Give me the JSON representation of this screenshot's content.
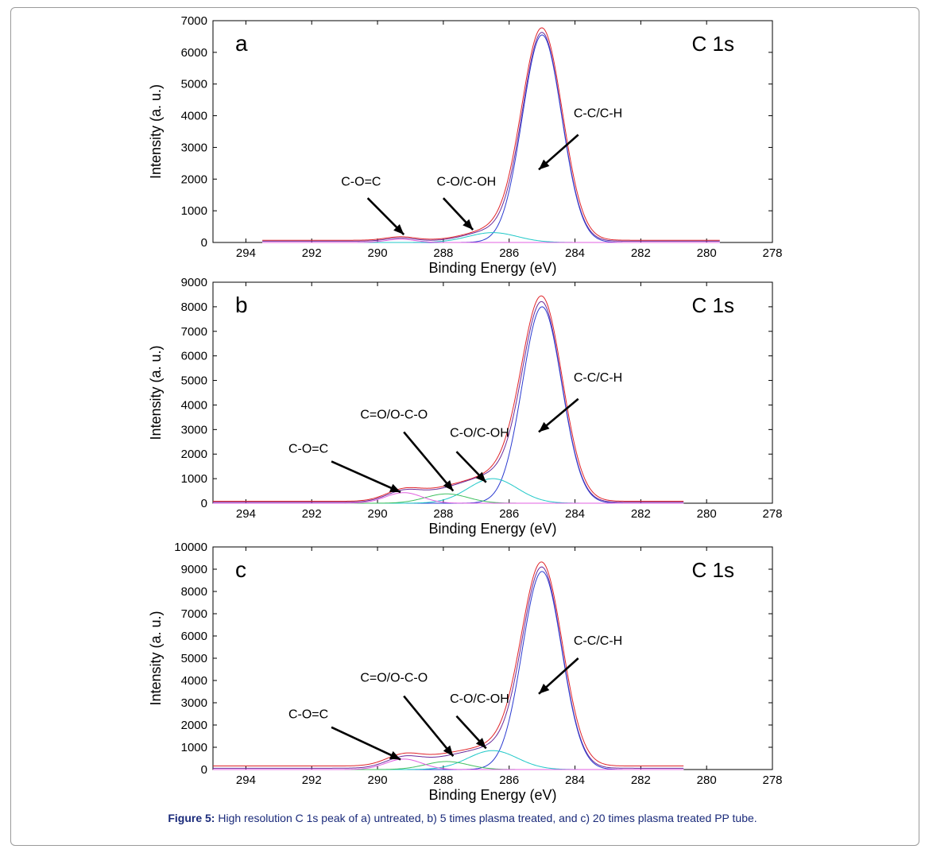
{
  "caption": {
    "label": "Figure 5:",
    "text": "High resolution C 1s peak of a) untreated, b) 5 times plasma treated, and c) 20 times plasma treated PP tube."
  },
  "colors": {
    "envelope": "#e0242a",
    "fit_sum": "#6a2a9a",
    "cc_ch": "#2a3ad0",
    "c_o_c_oh": "#20c8c8",
    "c_o_c": "#e060e0",
    "coo": "#40c060"
  },
  "chart_data": [
    {
      "type": "line",
      "panel_label": "a",
      "title": "C 1s",
      "xlabel": "Binding Energy (eV)",
      "ylabel": "Intensity (a. u.)",
      "xlim": [
        295,
        278
      ],
      "ylim": [
        0,
        7000
      ],
      "x_reversed": true,
      "xticks": [
        294,
        292,
        290,
        288,
        286,
        284,
        282,
        280,
        278
      ],
      "yticks": [
        0,
        1000,
        2000,
        3000,
        4000,
        5000,
        6000,
        7000
      ],
      "x_range_data": [
        293.5,
        279.6
      ],
      "series": [
        {
          "role": "envelope",
          "baseline": 70,
          "peaks": [
            [
              285.0,
              6650,
              0.62
            ],
            [
              286.5,
              320,
              0.8
            ],
            [
              289.3,
              110,
              0.45
            ]
          ]
        },
        {
          "role": "fit_sum",
          "baseline": 40,
          "peaks": [
            [
              285.0,
              6560,
              0.6
            ],
            [
              286.6,
              300,
              0.75
            ],
            [
              289.3,
              100,
              0.45
            ]
          ]
        },
        {
          "role": "cc_ch",
          "baseline": 0,
          "peaks": [
            [
              285.0,
              6550,
              0.6
            ]
          ]
        },
        {
          "role": "c_o_c_oh",
          "baseline": 0,
          "peaks": [
            [
              286.5,
              310,
              0.75
            ]
          ]
        },
        {
          "role": "c_o_c",
          "baseline": 0,
          "peaks": [
            [
              289.3,
              100,
              0.45
            ]
          ]
        }
      ],
      "annotations": [
        {
          "text": "C-C/C-H",
          "text_at": [
            283.3,
            3950
          ],
          "arrow_from": [
            283.9,
            3400
          ],
          "arrow_to": [
            285.1,
            2300
          ]
        },
        {
          "text": "C-O/C-OH",
          "text_at": [
            287.3,
            1800
          ],
          "arrow_from": [
            288.0,
            1400
          ],
          "arrow_to": [
            287.1,
            400
          ]
        },
        {
          "text": "C-O=C",
          "text_at": [
            290.5,
            1800
          ],
          "arrow_from": [
            290.3,
            1400
          ],
          "arrow_to": [
            289.2,
            250
          ]
        }
      ]
    },
    {
      "type": "line",
      "panel_label": "b",
      "title": "C 1s",
      "xlabel": "Binding Energy (eV)",
      "ylabel": "Intensity (a. u.)",
      "xlim": [
        295,
        278
      ],
      "ylim": [
        0,
        9000
      ],
      "x_reversed": true,
      "xticks": [
        294,
        292,
        290,
        288,
        286,
        284,
        282,
        280,
        278
      ],
      "yticks": [
        0,
        1000,
        2000,
        3000,
        4000,
        5000,
        6000,
        7000,
        8000,
        9000
      ],
      "x_range_data": [
        295,
        280.7
      ],
      "series": [
        {
          "role": "envelope",
          "baseline": 80,
          "peaks": [
            [
              285.0,
              8100,
              0.62
            ],
            [
              286.4,
              1000,
              0.85
            ],
            [
              287.9,
              400,
              0.7
            ],
            [
              289.2,
              460,
              0.55
            ]
          ]
        },
        {
          "role": "fit_sum",
          "baseline": 40,
          "peaks": [
            [
              285.0,
              8000,
              0.6
            ],
            [
              286.5,
              980,
              0.8
            ],
            [
              287.9,
              380,
              0.7
            ],
            [
              289.2,
              440,
              0.55
            ]
          ]
        },
        {
          "role": "cc_ch",
          "baseline": 0,
          "peaks": [
            [
              285.0,
              8000,
              0.6
            ]
          ]
        },
        {
          "role": "c_o_c_oh",
          "baseline": 0,
          "peaks": [
            [
              286.5,
              1000,
              0.75
            ]
          ]
        },
        {
          "role": "coo",
          "baseline": 0,
          "peaks": [
            [
              287.9,
              380,
              0.65
            ]
          ]
        },
        {
          "role": "c_o_c",
          "baseline": 0,
          "peaks": [
            [
              289.2,
              430,
              0.55
            ]
          ]
        }
      ],
      "annotations": [
        {
          "text": "C-C/C-H",
          "text_at": [
            283.3,
            4950
          ],
          "arrow_from": [
            283.9,
            4250
          ],
          "arrow_to": [
            285.1,
            2900
          ]
        },
        {
          "text": "C-O/C-OH",
          "text_at": [
            286.9,
            2700
          ],
          "arrow_from": [
            287.6,
            2100
          ],
          "arrow_to": [
            286.7,
            850
          ]
        },
        {
          "text": "C=O/O-C-O",
          "text_at": [
            289.5,
            3450
          ],
          "arrow_from": [
            289.2,
            2900
          ],
          "arrow_to": [
            287.7,
            500
          ]
        },
        {
          "text": "C-O=C",
          "text_at": [
            292.1,
            2050
          ],
          "arrow_from": [
            291.4,
            1700
          ],
          "arrow_to": [
            289.3,
            450
          ]
        }
      ]
    },
    {
      "type": "line",
      "panel_label": "c",
      "title": "C 1s",
      "xlabel": "Binding Energy (eV)",
      "ylabel": "Intensity (a. u.)",
      "xlim": [
        295,
        278
      ],
      "ylim": [
        0,
        10000
      ],
      "x_reversed": true,
      "xticks": [
        294,
        292,
        290,
        288,
        286,
        284,
        282,
        280,
        278
      ],
      "yticks": [
        0,
        1000,
        2000,
        3000,
        4000,
        5000,
        6000,
        7000,
        8000,
        9000,
        10000
      ],
      "x_range_data": [
        295,
        280.7
      ],
      "series": [
        {
          "role": "envelope",
          "baseline": 160,
          "peaks": [
            [
              285.0,
              8950,
              0.62
            ],
            [
              286.4,
              830,
              0.85
            ],
            [
              287.9,
              380,
              0.7
            ],
            [
              289.2,
              500,
              0.55
            ]
          ]
        },
        {
          "role": "fit_sum",
          "baseline": 60,
          "peaks": [
            [
              285.0,
              8900,
              0.6
            ],
            [
              286.5,
              820,
              0.8
            ],
            [
              287.9,
              360,
              0.7
            ],
            [
              289.2,
              480,
              0.55
            ]
          ]
        },
        {
          "role": "cc_ch",
          "baseline": 0,
          "peaks": [
            [
              285.0,
              8900,
              0.6
            ]
          ]
        },
        {
          "role": "c_o_c_oh",
          "baseline": 0,
          "peaks": [
            [
              286.5,
              850,
              0.75
            ]
          ]
        },
        {
          "role": "coo",
          "baseline": 0,
          "peaks": [
            [
              287.9,
              360,
              0.65
            ]
          ]
        },
        {
          "role": "c_o_c",
          "baseline": 0,
          "peaks": [
            [
              289.2,
              470,
              0.55
            ]
          ]
        }
      ],
      "annotations": [
        {
          "text": "C-C/C-H",
          "text_at": [
            283.3,
            5600
          ],
          "arrow_from": [
            283.9,
            5000
          ],
          "arrow_to": [
            285.1,
            3400
          ]
        },
        {
          "text": "C-O/C-OH",
          "text_at": [
            286.9,
            3000
          ],
          "arrow_from": [
            287.6,
            2400
          ],
          "arrow_to": [
            286.7,
            950
          ]
        },
        {
          "text": "C=O/O-C-O",
          "text_at": [
            289.5,
            3950
          ],
          "arrow_from": [
            289.2,
            3300
          ],
          "arrow_to": [
            287.7,
            600
          ]
        },
        {
          "text": "C-O=C",
          "text_at": [
            292.1,
            2300
          ],
          "arrow_from": [
            291.4,
            1900
          ],
          "arrow_to": [
            289.3,
            450
          ]
        }
      ]
    }
  ]
}
